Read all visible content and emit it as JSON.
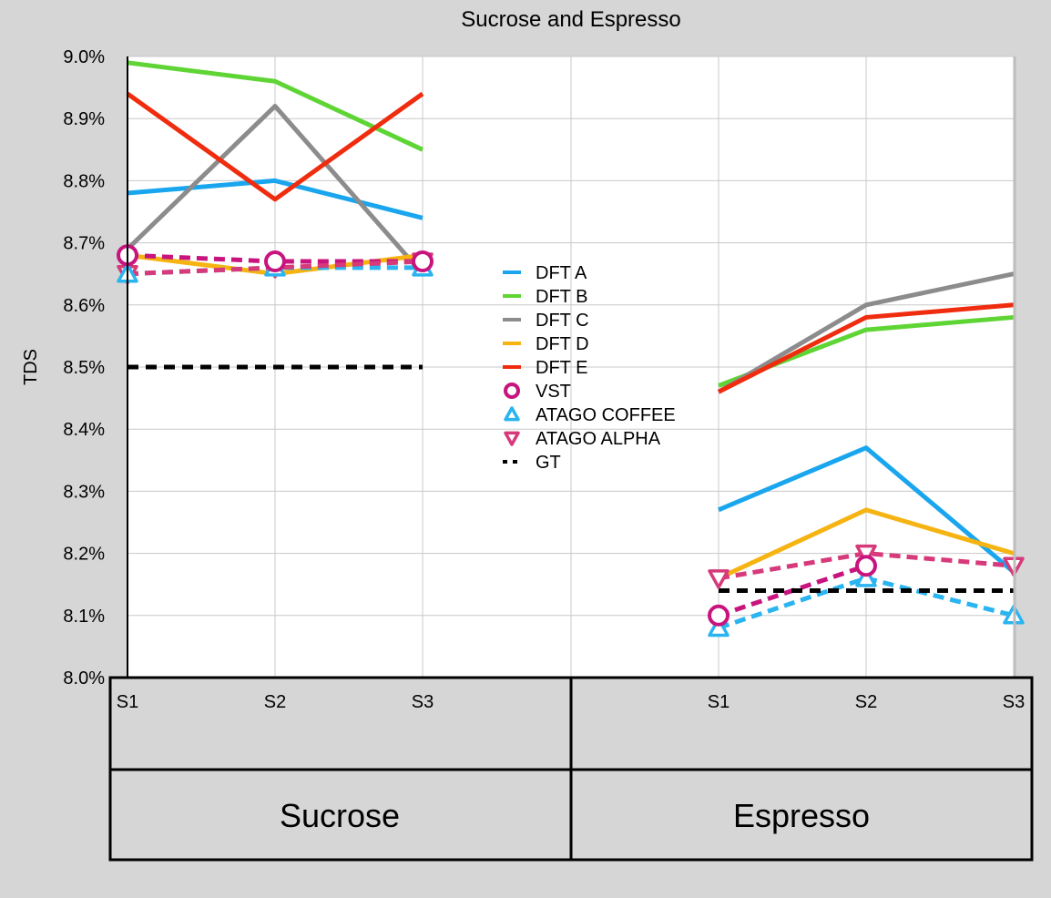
{
  "chart_data": {
    "type": "line",
    "title": "Sucrose and Espresso",
    "ylabel": "TDS",
    "xlabel": "",
    "ylim": [
      8.0,
      9.0
    ],
    "y_ticks": [
      "8.0%",
      "8.1%",
      "8.2%",
      "8.3%",
      "8.4%",
      "8.5%",
      "8.6%",
      "8.7%",
      "8.8%",
      "8.9%",
      "9.0%"
    ],
    "groups": [
      "Sucrose",
      "Espresso"
    ],
    "x_labels": [
      "S1",
      "S2",
      "S3",
      "",
      "S1",
      "S2",
      "S3"
    ],
    "grid": true,
    "legend_position": "center",
    "series": [
      {
        "name": "DFT A",
        "color": "#1aa6ee",
        "style": "solid",
        "marker": "none",
        "values": [
          8.78,
          8.8,
          8.74,
          null,
          8.27,
          8.37,
          8.17
        ]
      },
      {
        "name": "DFT B",
        "color": "#5fd535",
        "style": "solid",
        "marker": "none",
        "values": [
          8.99,
          8.96,
          8.85,
          null,
          8.47,
          8.56,
          8.58
        ]
      },
      {
        "name": "DFT C",
        "color": "#8c8c8c",
        "style": "solid",
        "marker": "none",
        "values": [
          8.69,
          8.92,
          8.65,
          null,
          8.46,
          8.6,
          8.65
        ]
      },
      {
        "name": "DFT D",
        "color": "#f5b412",
        "style": "solid",
        "marker": "none",
        "values": [
          8.68,
          8.65,
          8.68,
          null,
          8.16,
          8.27,
          8.2
        ]
      },
      {
        "name": "DFT E",
        "color": "#f02c0f",
        "style": "solid",
        "marker": "none",
        "values": [
          8.94,
          8.77,
          8.94,
          null,
          8.46,
          8.58,
          8.6
        ]
      },
      {
        "name": "VST",
        "color": "#c8147e",
        "style": "dashed",
        "marker": "circle",
        "values": [
          8.68,
          8.67,
          8.67,
          null,
          8.1,
          8.18,
          null
        ]
      },
      {
        "name": "ATAGO COFFEE",
        "color": "#2ab4f0",
        "style": "dashed",
        "marker": "triangle-up",
        "values": [
          8.65,
          8.66,
          8.66,
          null,
          8.08,
          8.16,
          8.1
        ]
      },
      {
        "name": "ATAGO ALPHA",
        "color": "#d63a7a",
        "style": "dashed",
        "marker": "triangle-down",
        "values": [
          8.65,
          8.66,
          8.67,
          null,
          8.16,
          8.2,
          8.18
        ]
      },
      {
        "name": "GT",
        "color": "#000000",
        "style": "dashed",
        "marker": "none",
        "values": [
          8.5,
          8.5,
          8.5,
          null,
          8.14,
          8.14,
          8.14
        ]
      }
    ]
  }
}
